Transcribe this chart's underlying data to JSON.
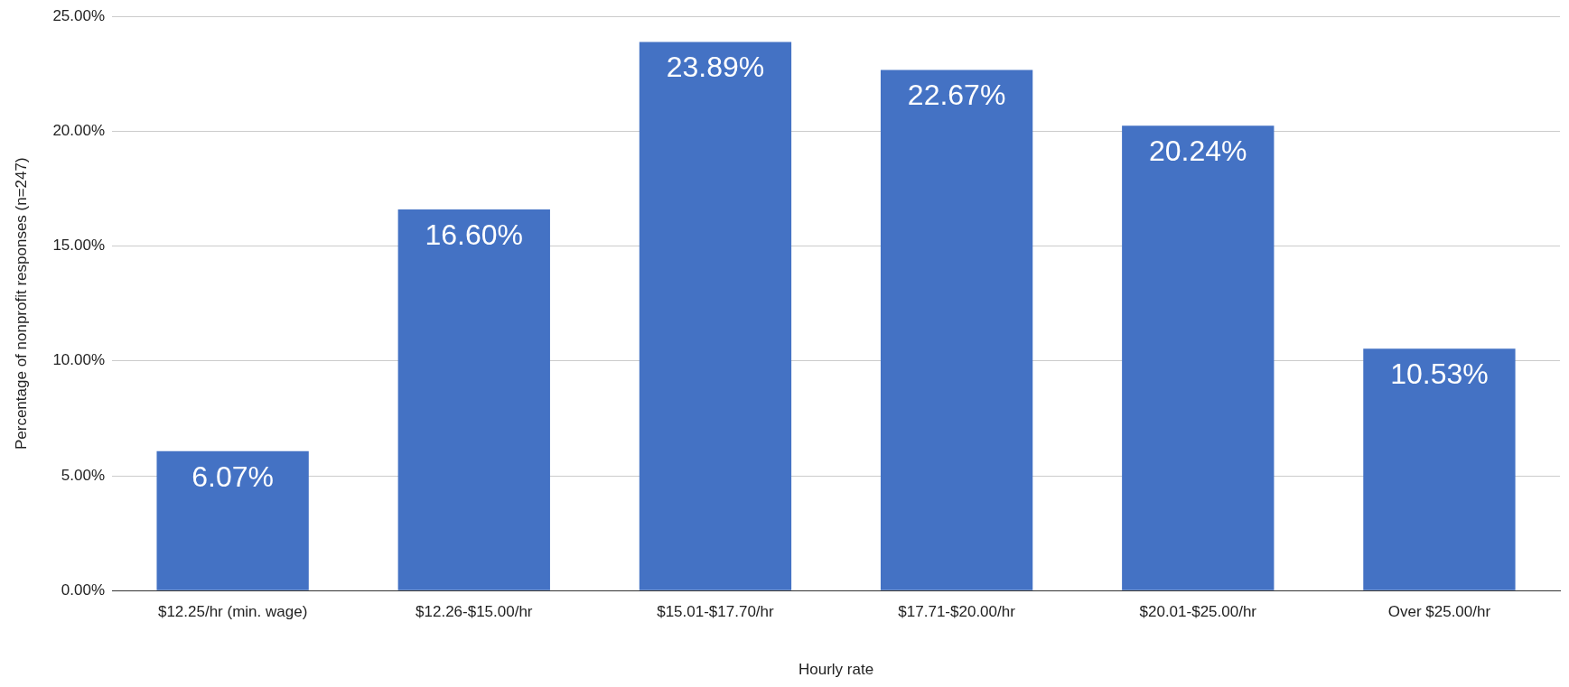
{
  "chart_data": {
    "type": "bar",
    "xlabel": "Hourly rate",
    "ylabel": "Percentage of nonprofit responses (n=247)",
    "categories": [
      "$12.25/hr (min. wage)",
      "$12.26-$15.00/hr",
      "$15.01-$17.70/hr",
      "$17.71-$20.00/hr",
      "$20.01-$25.00/hr",
      "Over $25.00/hr"
    ],
    "values": [
      6.07,
      16.6,
      23.89,
      22.67,
      20.24,
      10.53
    ],
    "value_labels": [
      "6.07%",
      "16.60%",
      "23.89%",
      "22.67%",
      "20.24%",
      "10.53%"
    ],
    "color": "#4472c4",
    "ylim": [
      0,
      25
    ],
    "yticks": [
      {
        "value": 0,
        "label": "0.00%"
      },
      {
        "value": 5,
        "label": "5.00%"
      },
      {
        "value": 10,
        "label": "10.00%"
      },
      {
        "value": 15,
        "label": "15.00%"
      },
      {
        "value": 20,
        "label": "20.00%"
      },
      {
        "value": 25,
        "label": "25.00%"
      }
    ],
    "grid": "y",
    "legend": false
  }
}
